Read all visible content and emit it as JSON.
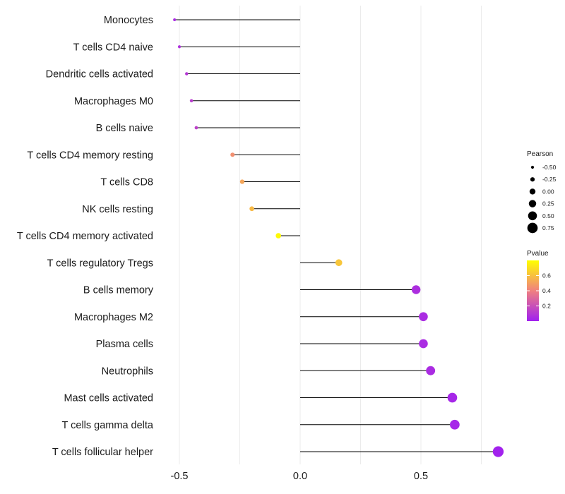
{
  "chart_data": {
    "type": "lollipop",
    "title": "",
    "xlabel": "",
    "ylabel": "",
    "xlim": [
      -0.6,
      0.84
    ],
    "x_ticks": [
      -0.5,
      0.0,
      0.5
    ],
    "x_tick_labels": [
      "-0.5",
      "0.0",
      "0.5"
    ],
    "grid": "vertical",
    "categories": [
      "Monocytes",
      "T cells CD4 naive",
      "Dendritic cells activated",
      "Macrophages M0",
      "B cells naive",
      "T cells CD4 memory resting",
      "T cells CD8",
      "NK cells resting",
      "T cells CD4 memory activated",
      "T cells regulatory  Tregs ",
      "B cells memory",
      "Macrophages M2",
      "Plasma cells",
      "Neutrophils",
      "Mast cells activated",
      "T cells gamma delta",
      "T cells follicular helper"
    ],
    "pearson": [
      -0.52,
      -0.5,
      -0.47,
      -0.45,
      -0.43,
      -0.28,
      -0.24,
      -0.2,
      -0.09,
      0.16,
      0.48,
      0.51,
      0.51,
      0.54,
      0.63,
      0.64,
      0.82
    ],
    "pvalue": [
      0.05,
      0.07,
      0.1,
      0.12,
      0.14,
      0.45,
      0.52,
      0.58,
      0.78,
      0.62,
      0.06,
      0.05,
      0.05,
      0.05,
      0.03,
      0.03,
      0.01
    ],
    "size_legend": {
      "title": "Pearson",
      "values": [
        -0.5,
        -0.25,
        0.0,
        0.25,
        0.5,
        0.75
      ],
      "labels": [
        "-0.50",
        "-0.25",
        "0.00",
        "0.25",
        "0.50",
        "0.75"
      ]
    },
    "color_legend": {
      "title": "Pvalue",
      "range": [
        0.0,
        0.8
      ],
      "ticks": [
        0.2,
        0.4,
        0.6
      ],
      "tick_labels": [
        "0.2",
        "0.4",
        "0.6"
      ],
      "low_color": "#a020f0",
      "mid_color": "#f08080",
      "high_color": "#ffff00"
    },
    "legend_position": "right"
  },
  "colors": {
    "line": "#000000",
    "grid": "#ebebeb",
    "text": "#1a1a1a"
  }
}
